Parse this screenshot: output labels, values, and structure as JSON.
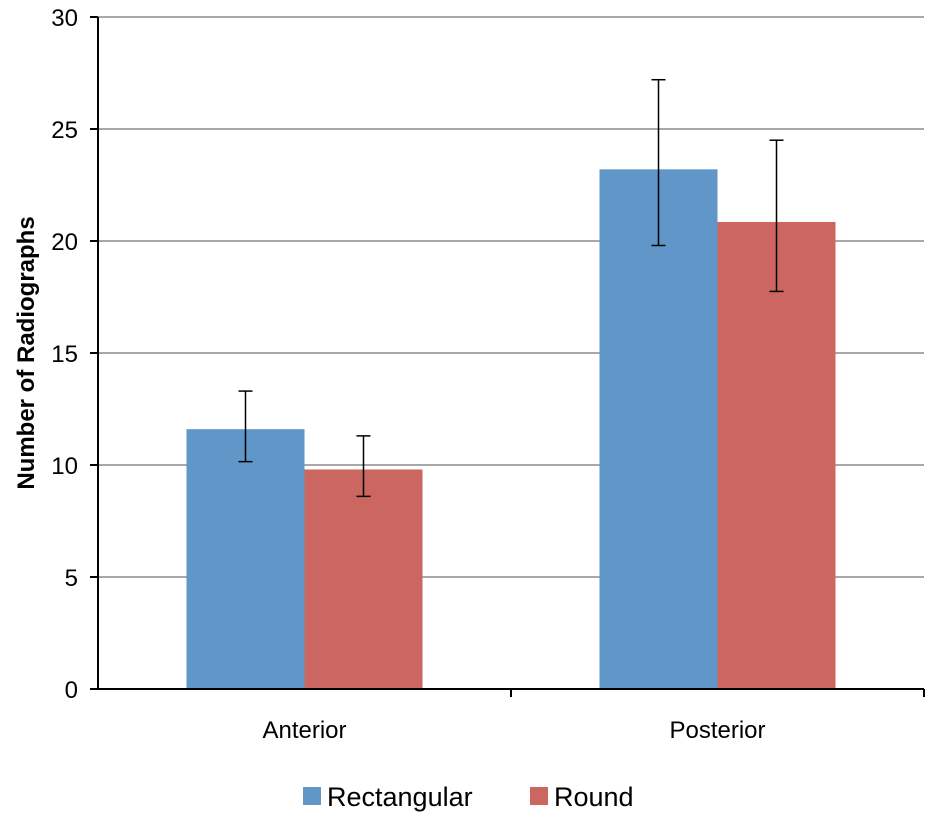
{
  "chart_data": {
    "type": "bar",
    "title": "",
    "xlabel": "",
    "ylabel": "Number of Radiographs",
    "ylim": [
      0,
      30
    ],
    "yticks": [
      0,
      5,
      10,
      15,
      20,
      25,
      30
    ],
    "grid": true,
    "legend_position": "bottom",
    "categories": [
      "Anterior",
      "Posterior"
    ],
    "series": [
      {
        "name": "Rectangular",
        "color": "#6196c9",
        "values": [
          11.6,
          23.2
        ],
        "error_low": [
          10.15,
          19.8
        ],
        "error_high": [
          13.3,
          27.2
        ]
      },
      {
        "name": "Round",
        "color": "#cc6660",
        "values": [
          9.8,
          20.85
        ],
        "error_low": [
          8.6,
          17.75
        ],
        "error_high": [
          11.3,
          24.5
        ]
      }
    ]
  }
}
